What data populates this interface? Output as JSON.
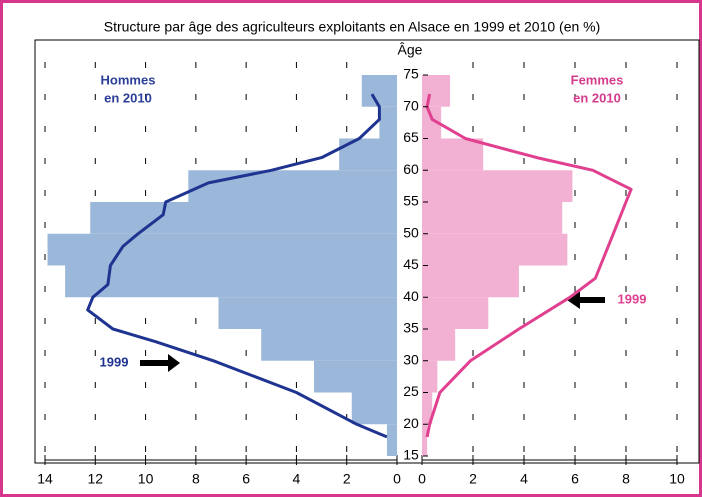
{
  "chart_data": {
    "type": "pyramid",
    "title": "Structure par âge des agriculteurs exploitants en Alsace en 1999 et 2010 (en %)",
    "ylabel": "Âge",
    "ylim": [
      15,
      75
    ],
    "yticks": [
      15,
      20,
      25,
      30,
      35,
      40,
      45,
      50,
      55,
      60,
      65,
      70,
      75
    ],
    "age_bins": [
      15,
      20,
      25,
      30,
      35,
      40,
      45,
      50,
      55,
      60,
      65,
      70,
      75
    ],
    "left": {
      "xlim": [
        0,
        14
      ],
      "xticks": [
        0,
        2,
        4,
        6,
        8,
        10,
        12,
        14
      ],
      "bars": {
        "label_lines": [
          "Hommes",
          "en 2010"
        ],
        "color": "#9bb7d9",
        "text_color": "#2b3f98",
        "values": [
          0.4,
          1.8,
          3.3,
          5.4,
          7.1,
          13.2,
          13.9,
          12.2,
          8.3,
          2.3,
          0.7,
          1.4
        ]
      },
      "line": {
        "name": "1999",
        "color": "#1f3390",
        "ages": [
          18,
          20,
          25,
          30,
          33,
          35,
          38,
          40,
          42,
          45,
          48,
          50,
          53,
          55,
          58,
          60,
          62,
          65,
          68,
          70,
          72
        ],
        "values": [
          0.4,
          1.6,
          4.0,
          7.3,
          9.6,
          11.3,
          12.3,
          12.1,
          11.5,
          11.4,
          10.9,
          10.3,
          9.3,
          9.2,
          7.5,
          5.0,
          3.0,
          1.5,
          0.7,
          0.7,
          1.0
        ]
      }
    },
    "right": {
      "xlim": [
        0,
        10
      ],
      "xticks": [
        0,
        2,
        4,
        6,
        8,
        10
      ],
      "bars": {
        "label_lines": [
          "Femmes",
          "en 2010"
        ],
        "color": "#f2b0d2",
        "text_color": "#d63c8c",
        "values": [
          0.2,
          0.4,
          0.6,
          1.3,
          2.6,
          3.8,
          5.7,
          5.5,
          5.9,
          2.4,
          0.75,
          1.1
        ]
      },
      "line": {
        "name": "1999",
        "color": "#e0408f",
        "ages": [
          18,
          20,
          25,
          30,
          35,
          40,
          43,
          45,
          50,
          55,
          57,
          60,
          62,
          65,
          68,
          70,
          72
        ],
        "values": [
          0.2,
          0.3,
          0.7,
          1.9,
          3.8,
          5.8,
          6.8,
          7.0,
          7.5,
          8.0,
          8.2,
          6.7,
          4.5,
          1.7,
          0.4,
          0.2,
          0.3
        ]
      }
    }
  }
}
